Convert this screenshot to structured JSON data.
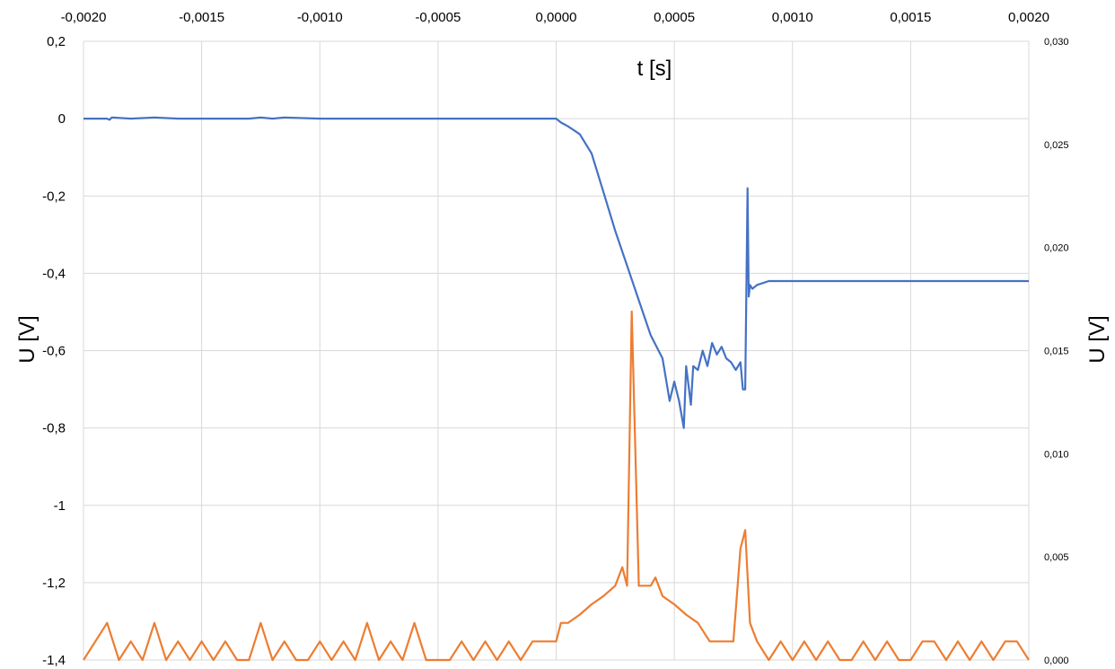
{
  "chart_data": {
    "type": "line",
    "xlabel": "t [s]",
    "ylabel_left": "U [V]",
    "ylabel_right": "U [V]",
    "xlim": [
      -0.002,
      0.002
    ],
    "ylim_left": [
      -1.4,
      0.2
    ],
    "ylim_right": [
      0,
      0.03
    ],
    "x_ticks": [
      "-0,0020",
      "-0,0015",
      "-0,0010",
      "-0,0005",
      "0,0000",
      "0,0005",
      "0,0010",
      "0,0015",
      "0,0020"
    ],
    "y_left_ticks": [
      "0,2",
      "0",
      "-0,2",
      "-0,4",
      "-0,6",
      "-0,8",
      "-1",
      "-1,2",
      "-1,4"
    ],
    "y_right_ticks": [
      "0,030",
      "0,025",
      "0,020",
      "0,015",
      "0,010",
      "0,005",
      "0,000"
    ],
    "grid": true,
    "series": [
      {
        "axis": "left",
        "color": "#4472C4",
        "x": [
          -0.002,
          -0.0019,
          -0.00189,
          -0.00188,
          -0.0018,
          -0.0017,
          -0.0016,
          -0.0015,
          -0.0013,
          -0.00125,
          -0.0012,
          -0.00115,
          -0.001,
          -0.0009,
          -0.0008,
          -0.0006,
          -0.0005,
          -0.0004,
          -0.0003,
          -0.0002,
          -0.0001,
          0.0,
          2e-05,
          5e-05,
          0.0001,
          0.00015,
          0.0002,
          0.00025,
          0.0003,
          0.00035,
          0.0004,
          0.00045,
          0.00048,
          0.0005,
          0.00052,
          0.00054,
          0.00055,
          0.00057,
          0.00058,
          0.0006,
          0.00062,
          0.00064,
          0.00066,
          0.00068,
          0.0007,
          0.00072,
          0.00074,
          0.00076,
          0.00078,
          0.00079,
          0.0008,
          0.00081,
          0.000815,
          0.00082,
          0.00083,
          0.00085,
          0.0009,
          0.001,
          0.0012,
          0.0015,
          0.002
        ],
        "values": [
          0.0,
          0.0,
          -0.003,
          0.003,
          0.0,
          0.003,
          0.0,
          0.0,
          0.0,
          0.003,
          0.0,
          0.003,
          0.0,
          0.0,
          0.0,
          0.0,
          0.0,
          0.0,
          0.0,
          0.0,
          0.0,
          0.0,
          -0.01,
          -0.02,
          -0.04,
          -0.09,
          -0.19,
          -0.29,
          -0.38,
          -0.47,
          -0.56,
          -0.62,
          -0.73,
          -0.68,
          -0.73,
          -0.8,
          -0.64,
          -0.74,
          -0.64,
          -0.65,
          -0.6,
          -0.64,
          -0.58,
          -0.61,
          -0.59,
          -0.62,
          -0.63,
          -0.65,
          -0.63,
          -0.7,
          -0.7,
          -0.18,
          -0.46,
          -0.43,
          -0.44,
          -0.43,
          -0.42,
          -0.42,
          -0.42,
          -0.42,
          -0.42
        ]
      },
      {
        "axis": "right",
        "color": "#ED7D31",
        "x": [
          -0.002,
          -0.00195,
          -0.0019,
          -0.00185,
          -0.0018,
          -0.00175,
          -0.0017,
          -0.00165,
          -0.0016,
          -0.00155,
          -0.0015,
          -0.00145,
          -0.0014,
          -0.00135,
          -0.0013,
          -0.00125,
          -0.0012,
          -0.00115,
          -0.0011,
          -0.00105,
          -0.001,
          -0.00095,
          -0.0009,
          -0.00085,
          -0.0008,
          -0.00075,
          -0.0007,
          -0.00065,
          -0.0006,
          -0.00055,
          -0.0005,
          -0.00045,
          -0.0004,
          -0.00035,
          -0.0003,
          -0.00025,
          -0.0002,
          -0.00015,
          -0.0001,
          -5e-05,
          0.0,
          2e-05,
          5e-05,
          0.0001,
          0.00015,
          0.0002,
          0.00025,
          0.00028,
          0.0003,
          0.00032,
          0.00035,
          0.0004,
          0.00042,
          0.00045,
          0.0005,
          0.00055,
          0.0006,
          0.00065,
          0.0007,
          0.00075,
          0.00078,
          0.0008,
          0.00082,
          0.00085,
          0.0009,
          0.00095,
          0.001,
          0.00105,
          0.0011,
          0.00115,
          0.0012,
          0.00125,
          0.0013,
          0.00135,
          0.0014,
          0.00145,
          0.0015,
          0.00155,
          0.0016,
          0.00165,
          0.0017,
          0.00175,
          0.0018,
          0.00185,
          0.0019,
          0.00195,
          0.002
        ],
        "values": [
          0.0,
          0.0009,
          0.0018,
          0.0,
          0.0009,
          0.0,
          0.0018,
          0.0,
          0.0009,
          0.0,
          0.0009,
          0.0,
          0.0009,
          0.0,
          0.0,
          0.0018,
          0.0,
          0.0009,
          0.0,
          0.0,
          0.0009,
          0.0,
          0.0009,
          0.0,
          0.0018,
          0.0,
          0.0009,
          0.0,
          0.0018,
          0.0,
          0.0,
          0.0,
          0.0009,
          0.0,
          0.0009,
          0.0,
          0.0009,
          0.0,
          0.0009,
          0.0009,
          0.0009,
          0.0018,
          0.0018,
          0.0022,
          0.0027,
          0.0031,
          0.0036,
          0.0045,
          0.0036,
          0.0169,
          0.0036,
          0.0036,
          0.004,
          0.0031,
          0.0027,
          0.0022,
          0.0018,
          0.0009,
          0.0009,
          0.0009,
          0.0054,
          0.0063,
          0.0018,
          0.0009,
          0.0,
          0.0009,
          0.0,
          0.0009,
          0.0,
          0.0009,
          0.0,
          0.0,
          0.0009,
          0.0,
          0.0009,
          0.0,
          0.0,
          0.0009,
          0.0009,
          0.0,
          0.0009,
          0.0,
          0.0009,
          0.0,
          0.0009,
          0.0009,
          0.0
        ]
      }
    ]
  }
}
